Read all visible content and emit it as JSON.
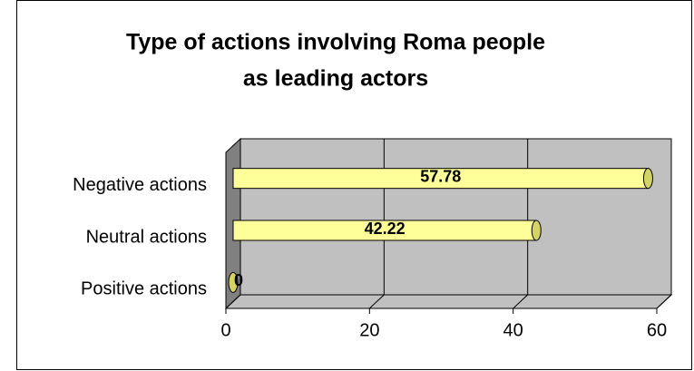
{
  "chart_data": {
    "type": "bar",
    "orientation": "horizontal",
    "title": [
      "Type of actions involving Roma people",
      "as leading actors"
    ],
    "categories": [
      "Positive actions",
      "Neutral actions",
      "Negative actions"
    ],
    "values": [
      0,
      42.22,
      57.78
    ],
    "color": "#ffff99",
    "xlim": [
      0,
      60
    ],
    "xticks": [
      0,
      20,
      40,
      60
    ],
    "grid": true
  }
}
